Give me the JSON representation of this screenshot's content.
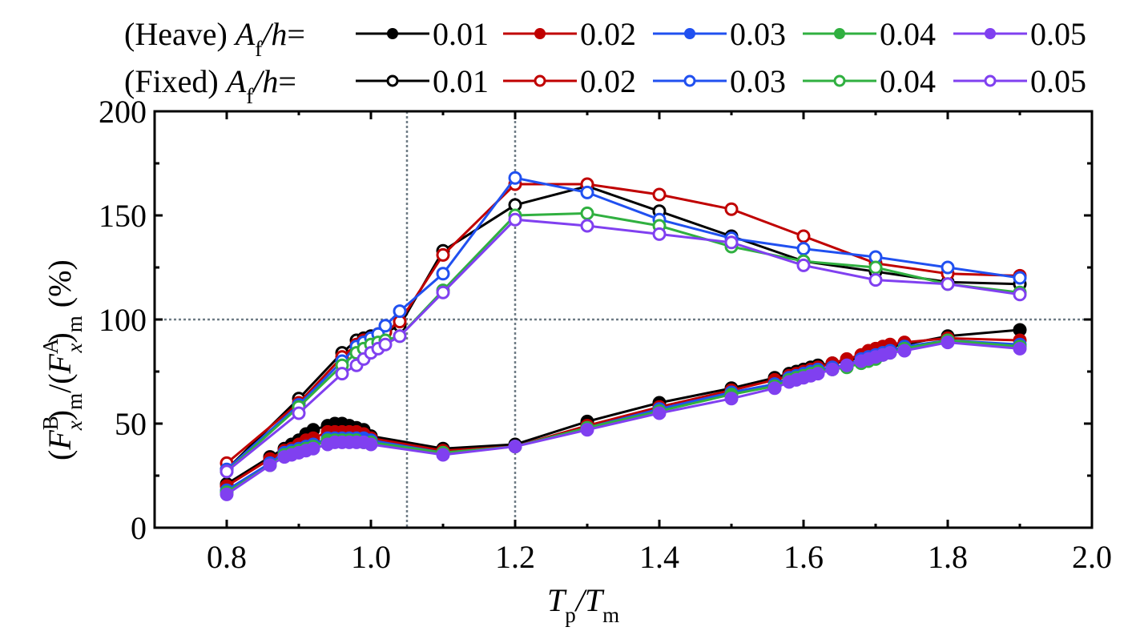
{
  "chart_data": {
    "type": "line",
    "title": "",
    "xlabel": {
      "main_1": "T",
      "sub_1": "p",
      "slash": "/",
      "main_2": "T",
      "sub_2": "m"
    },
    "ylabel": {
      "p1": "(",
      "F1": "F",
      "sup1": "B",
      "sub1": "x",
      "p2": ")",
      "sub_m1": "m",
      "slash": "/(",
      "F2": "F",
      "sup2": "A",
      "sub2": "x",
      "p3": ")",
      "sub_m2": "m",
      "unit": " (%)"
    },
    "xlim": [
      0.7,
      2.0
    ],
    "ylim": [
      0,
      200
    ],
    "xticks": [
      0.8,
      1.0,
      1.2,
      1.4,
      1.6,
      1.8,
      2.0
    ],
    "xtick_labels": [
      "0.8",
      "1.0",
      "1.2",
      "1.4",
      "1.6",
      "1.8",
      "2.0"
    ],
    "xminor": [
      0.9,
      1.1,
      1.3,
      1.5,
      1.7,
      1.9
    ],
    "yticks": [
      0,
      50,
      100,
      150,
      200
    ],
    "ytick_labels": [
      "0",
      "50",
      "100",
      "150",
      "200"
    ],
    "yminor": [
      25,
      75,
      125,
      175
    ],
    "grid": false,
    "reference_lines": {
      "vertical": [
        1.05,
        1.2
      ],
      "horizontal": [
        100
      ],
      "style": "dotted",
      "color": "#6e7b85"
    },
    "legend": {
      "placement": "top",
      "rows": [
        {
          "prefix": "(Heave) ",
          "var": "A",
          "var_sub": "f",
          "suffix": "/h=",
          "var_h": "h",
          "marker": "filled"
        },
        {
          "prefix": "(Fixed) ",
          "var": "A",
          "var_sub": "f",
          "suffix": "/h=",
          "var_h": "h",
          "marker": "open"
        }
      ],
      "labels": [
        "0.01",
        "0.02",
        "0.03",
        "0.04",
        "0.05"
      ]
    },
    "colors": [
      "#000000",
      "#c00000",
      "#2050f0",
      "#30b040",
      "#8040f0"
    ],
    "series": [
      {
        "name": "(Heave) Af/h=0.01",
        "group": "heave",
        "color_index": 0,
        "x": [
          0.8,
          0.86,
          0.88,
          0.89,
          0.9,
          0.91,
          0.92,
          0.94,
          0.95,
          0.96,
          0.97,
          0.98,
          0.99,
          1.0,
          1.1,
          1.2,
          1.3,
          1.4,
          1.5,
          1.56,
          1.58,
          1.59,
          1.6,
          1.61,
          1.62,
          1.64,
          1.66,
          1.68,
          1.69,
          1.7,
          1.71,
          1.72,
          1.74,
          1.8,
          1.9
        ],
        "y": [
          21,
          34,
          38,
          40,
          42,
          45,
          47,
          49,
          50,
          50,
          49,
          48,
          47,
          44,
          38,
          40,
          51,
          60,
          67,
          72,
          74,
          75,
          76,
          77,
          78,
          79,
          80,
          82,
          84,
          85,
          86,
          87,
          88,
          92,
          95
        ]
      },
      {
        "name": "(Heave) Af/h=0.02",
        "group": "heave",
        "color_index": 1,
        "x": [
          0.8,
          0.86,
          0.88,
          0.89,
          0.9,
          0.91,
          0.92,
          0.94,
          0.95,
          0.96,
          0.97,
          0.98,
          0.99,
          1.0,
          1.1,
          1.2,
          1.3,
          1.4,
          1.5,
          1.56,
          1.58,
          1.59,
          1.6,
          1.61,
          1.62,
          1.64,
          1.66,
          1.68,
          1.69,
          1.7,
          1.71,
          1.72,
          1.74,
          1.8,
          1.9
        ],
        "y": [
          20,
          33,
          37,
          38,
          40,
          42,
          43,
          46,
          46,
          46,
          46,
          46,
          45,
          43,
          37,
          39,
          49,
          58,
          66,
          71,
          73,
          74,
          75,
          76,
          77,
          79,
          81,
          83,
          85,
          86,
          87,
          88,
          89,
          91,
          90
        ]
      },
      {
        "name": "(Heave) Af/h=0.03",
        "group": "heave",
        "color_index": 2,
        "x": [
          0.8,
          0.86,
          0.88,
          0.89,
          0.9,
          0.91,
          0.92,
          0.94,
          0.95,
          0.96,
          0.97,
          0.98,
          0.99,
          1.0,
          1.1,
          1.2,
          1.3,
          1.4,
          1.5,
          1.56,
          1.58,
          1.59,
          1.6,
          1.61,
          1.62,
          1.64,
          1.66,
          1.68,
          1.69,
          1.7,
          1.71,
          1.72,
          1.74,
          1.8,
          1.9
        ],
        "y": [
          18,
          31,
          36,
          37,
          38,
          39,
          40,
          43,
          43,
          43,
          43,
          43,
          43,
          42,
          36,
          39,
          48,
          57,
          65,
          69,
          72,
          73,
          74,
          75,
          76,
          77,
          78,
          81,
          82,
          83,
          84,
          85,
          87,
          90,
          88
        ]
      },
      {
        "name": "(Heave) Af/h=0.04",
        "group": "heave",
        "color_index": 3,
        "x": [
          0.8,
          0.86,
          0.88,
          0.89,
          0.9,
          0.91,
          0.92,
          0.94,
          0.95,
          0.96,
          0.97,
          0.98,
          0.99,
          1.0,
          1.1,
          1.2,
          1.3,
          1.4,
          1.5,
          1.56,
          1.58,
          1.59,
          1.6,
          1.61,
          1.62,
          1.64,
          1.66,
          1.68,
          1.69,
          1.7,
          1.71,
          1.72,
          1.74,
          1.8,
          1.9
        ],
        "y": [
          17,
          30,
          35,
          36,
          37,
          38,
          39,
          42,
          42,
          42,
          42,
          42,
          41,
          41,
          36,
          39,
          48,
          56,
          64,
          68,
          71,
          72,
          73,
          74,
          75,
          76,
          77,
          79,
          80,
          81,
          83,
          84,
          86,
          90,
          87
        ]
      },
      {
        "name": "(Heave) Af/h=0.05",
        "group": "heave",
        "color_index": 4,
        "x": [
          0.8,
          0.86,
          0.88,
          0.89,
          0.9,
          0.91,
          0.92,
          0.94,
          0.95,
          0.96,
          0.97,
          0.98,
          0.99,
          1.0,
          1.1,
          1.2,
          1.3,
          1.4,
          1.5,
          1.56,
          1.58,
          1.59,
          1.6,
          1.61,
          1.62,
          1.64,
          1.66,
          1.68,
          1.69,
          1.7,
          1.71,
          1.72,
          1.74,
          1.8,
          1.9
        ],
        "y": [
          16,
          30,
          34,
          35,
          36,
          37,
          38,
          40,
          41,
          41,
          41,
          41,
          41,
          40,
          35,
          39,
          47,
          55,
          62,
          67,
          70,
          71,
          72,
          73,
          74,
          76,
          78,
          80,
          81,
          82,
          83,
          84,
          85,
          89,
          86
        ]
      },
      {
        "name": "(Fixed) Af/h=0.01",
        "group": "fixed",
        "color_index": 0,
        "x": [
          0.8,
          0.9,
          0.96,
          0.98,
          0.99,
          1.0,
          1.01,
          1.02,
          1.04,
          1.1,
          1.2,
          1.3,
          1.4,
          1.5,
          1.6,
          1.7,
          1.8,
          1.9
        ],
        "y": [
          28,
          62,
          84,
          90,
          91,
          92,
          93,
          94,
          97,
          133,
          155,
          164,
          152,
          140,
          128,
          123,
          118,
          117
        ]
      },
      {
        "name": "(Fixed) Af/h=0.02",
        "group": "fixed",
        "color_index": 1,
        "x": [
          0.8,
          0.9,
          0.96,
          0.98,
          0.99,
          1.0,
          1.01,
          1.02,
          1.04,
          1.1,
          1.2,
          1.3,
          1.4,
          1.5,
          1.6,
          1.7,
          1.8,
          1.9
        ],
        "y": [
          31,
          60,
          82,
          88,
          90,
          91,
          93,
          94,
          99,
          131,
          165,
          165,
          160,
          153,
          140,
          127,
          122,
          121
        ]
      },
      {
        "name": "(Fixed) Af/h=0.03",
        "group": "fixed",
        "color_index": 2,
        "x": [
          0.8,
          0.9,
          0.96,
          0.98,
          0.99,
          1.0,
          1.01,
          1.02,
          1.04,
          1.1,
          1.2,
          1.3,
          1.4,
          1.5,
          1.6,
          1.7,
          1.8,
          1.9
        ],
        "y": [
          28,
          59,
          80,
          87,
          89,
          91,
          93,
          97,
          104,
          122,
          168,
          161,
          148,
          139,
          134,
          130,
          125,
          120
        ]
      },
      {
        "name": "(Fixed) Af/h=0.04",
        "group": "fixed",
        "color_index": 3,
        "x": [
          0.8,
          0.9,
          0.96,
          0.98,
          0.99,
          1.0,
          1.01,
          1.02,
          1.04,
          1.1,
          1.2,
          1.3,
          1.4,
          1.5,
          1.6,
          1.7,
          1.8,
          1.9
        ],
        "y": [
          27,
          58,
          78,
          84,
          86,
          88,
          89,
          90,
          92,
          114,
          150,
          151,
          145,
          135,
          128,
          125,
          117,
          113
        ]
      },
      {
        "name": "(Fixed) Af/h=0.05",
        "group": "fixed",
        "color_index": 4,
        "x": [
          0.8,
          0.9,
          0.96,
          0.98,
          0.99,
          1.0,
          1.01,
          1.02,
          1.04,
          1.1,
          1.2,
          1.3,
          1.4,
          1.5,
          1.6,
          1.7,
          1.8,
          1.9
        ],
        "y": [
          27,
          55,
          74,
          78,
          81,
          84,
          86,
          88,
          92,
          113,
          148,
          145,
          141,
          137,
          126,
          119,
          117,
          112
        ]
      }
    ]
  }
}
